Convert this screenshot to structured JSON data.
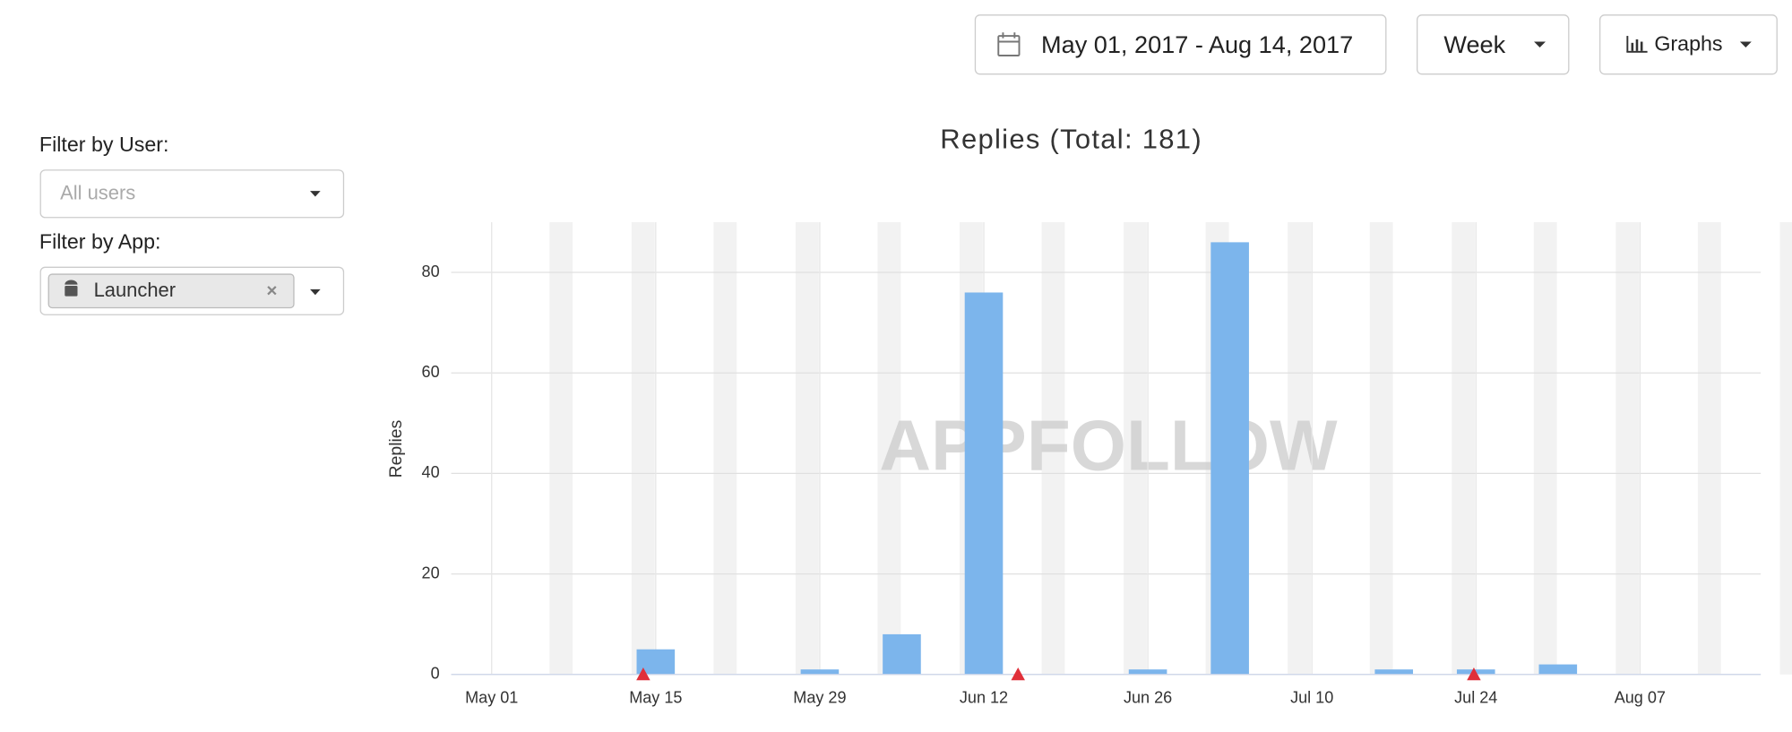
{
  "ui": {
    "date_range": "May 01, 2017 - Aug 14, 2017",
    "period": "Week",
    "view": "Graphs",
    "filter_user_label": "Filter by User:",
    "user_placeholder": "All users",
    "filter_app_label": "Filter by App:",
    "app": "Launcher",
    "watermark": "APPFOLLOW"
  },
  "chart_data": {
    "type": "bar",
    "title": "Replies (Total: 181)",
    "y_label": "Replies",
    "categories": [
      "May 01",
      null,
      "May 15",
      null,
      "May 29",
      null,
      "Jun 12",
      null,
      "Jun 26",
      null,
      "Jul 10",
      null,
      "Jul 24",
      null,
      "Aug 07",
      null
    ],
    "values": [
      0,
      0,
      5,
      0,
      1,
      8,
      76,
      0,
      1,
      86,
      0,
      1,
      1,
      2,
      0,
      0
    ],
    "color": "#7cb5ec",
    "ylim": [
      0,
      90
    ],
    "yticks": [
      0,
      20,
      40,
      60,
      80
    ],
    "grid": true
  }
}
